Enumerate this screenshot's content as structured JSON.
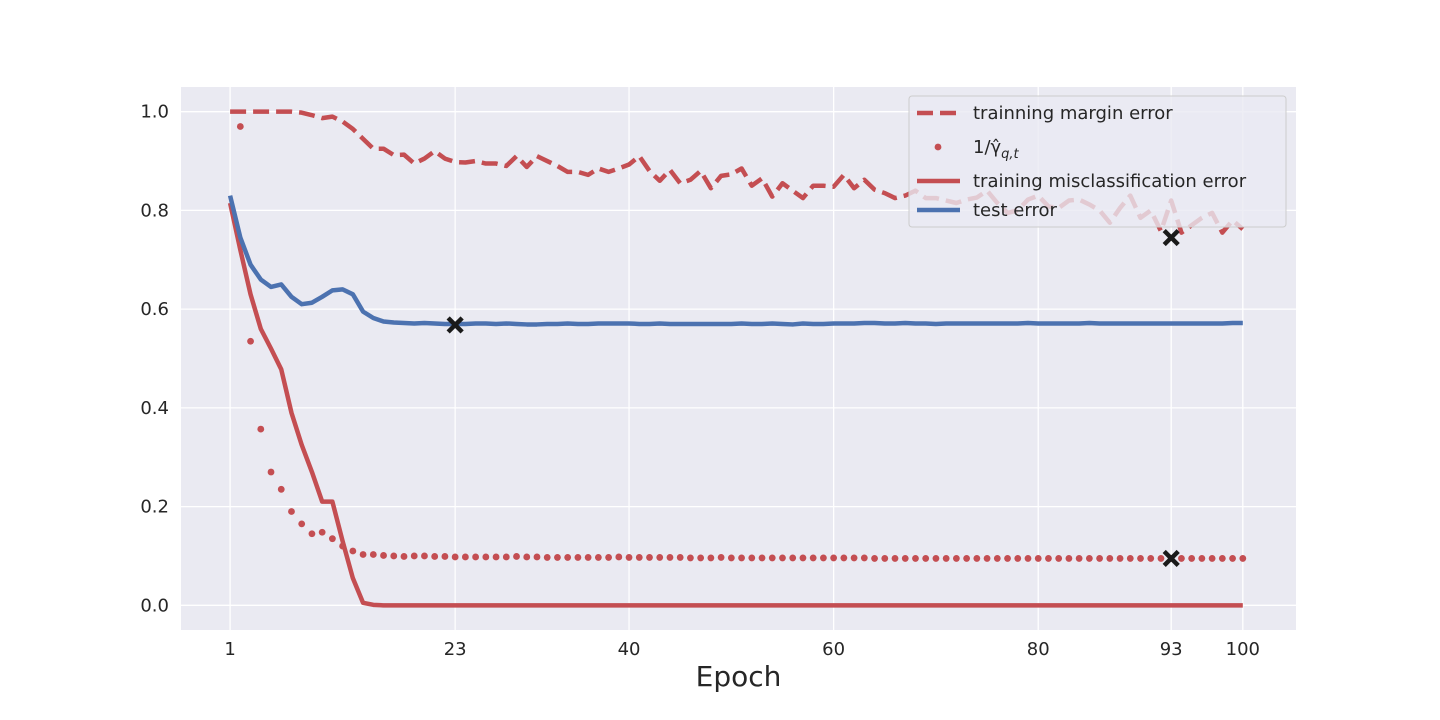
{
  "chart_data": {
    "type": "line",
    "xlabel": "Epoch",
    "ylabel": "",
    "xlim": [
      -3.8,
      105.2
    ],
    "ylim": [
      -0.05,
      1.05
    ],
    "xticks": [
      1,
      23,
      40,
      60,
      80,
      93,
      100
    ],
    "yticks": [
      0.0,
      0.2,
      0.4,
      0.6,
      0.8,
      1.0
    ],
    "grid": true,
    "legend_placement": "top-right",
    "colors": {
      "background": "#eaeaf2",
      "grid": "#ffffff",
      "red": "#c44e52",
      "blue": "#4c72b0",
      "marker": "#1a1a1a"
    },
    "series": [
      {
        "name": "trainning margin error",
        "style": "dashed",
        "color": "#c44e52",
        "values": [
          1.0,
          1.0,
          1.0,
          1.0,
          1.0,
          1.0,
          1.0,
          0.998,
          0.993,
          0.987,
          0.99,
          0.98,
          0.965,
          0.945,
          0.925,
          0.925,
          0.912,
          0.913,
          0.895,
          0.905,
          0.92,
          0.905,
          0.898,
          0.897,
          0.9,
          0.895,
          0.895,
          0.89,
          0.91,
          0.888,
          0.91,
          0.9,
          0.89,
          0.878,
          0.878,
          0.872,
          0.885,
          0.878,
          0.885,
          0.893,
          0.91,
          0.88,
          0.86,
          0.882,
          0.855,
          0.862,
          0.88,
          0.845,
          0.87,
          0.873,
          0.885,
          0.85,
          0.865,
          0.828,
          0.855,
          0.84,
          0.825,
          0.85,
          0.85,
          0.848,
          0.872,
          0.845,
          0.862,
          0.842,
          0.835,
          0.825,
          0.83,
          0.84,
          0.825,
          0.825,
          0.82,
          0.815,
          0.822,
          0.826,
          0.84,
          0.815,
          0.795,
          0.8,
          0.822,
          0.83,
          0.808,
          0.805,
          0.82,
          0.822,
          0.812,
          0.8,
          0.775,
          0.805,
          0.83,
          0.785,
          0.8,
          0.758,
          0.82,
          0.755,
          0.77,
          0.785,
          0.795,
          0.755,
          0.78,
          0.762
        ]
      },
      {
        "name": "1/γ̂q,t",
        "style": "dotted-markers",
        "color": "#c44e52",
        "values": [
          null,
          0.97,
          0.535,
          0.357,
          0.27,
          0.235,
          0.19,
          0.165,
          0.145,
          0.148,
          0.135,
          0.12,
          0.11,
          0.103,
          0.103,
          0.101,
          0.1,
          0.099,
          0.1,
          0.1,
          0.099,
          0.099,
          0.098,
          0.098,
          0.098,
          0.098,
          0.098,
          0.098,
          0.099,
          0.098,
          0.098,
          0.097,
          0.097,
          0.097,
          0.097,
          0.097,
          0.097,
          0.097,
          0.098,
          0.097,
          0.097,
          0.097,
          0.097,
          0.097,
          0.097,
          0.096,
          0.096,
          0.096,
          0.097,
          0.096,
          0.096,
          0.096,
          0.096,
          0.096,
          0.096,
          0.096,
          0.096,
          0.096,
          0.096,
          0.096,
          0.096,
          0.096,
          0.096,
          0.095,
          0.095,
          0.095,
          0.095,
          0.095,
          0.095,
          0.095,
          0.095,
          0.095,
          0.095,
          0.095,
          0.095,
          0.095,
          0.095,
          0.095,
          0.095,
          0.095,
          0.095,
          0.095,
          0.095,
          0.095,
          0.095,
          0.095,
          0.095,
          0.095,
          0.095,
          0.095,
          0.095,
          0.095,
          0.095,
          0.095,
          0.095,
          0.095,
          0.095,
          0.095,
          0.095,
          0.095
        ]
      },
      {
        "name": "training misclassification error",
        "style": "solid",
        "color": "#c44e52",
        "values": [
          0.815,
          0.72,
          0.63,
          0.56,
          0.52,
          0.478,
          0.39,
          0.325,
          0.27,
          0.21,
          0.21,
          0.13,
          0.055,
          0.005,
          0.001,
          0.0,
          0.0,
          0.0,
          0.0,
          0.0,
          0.0,
          0.0,
          0.0,
          0.0,
          0.0,
          0.0,
          0.0,
          0.0,
          0.0,
          0.0,
          0.0,
          0.0,
          0.0,
          0.0,
          0.0,
          0.0,
          0.0,
          0.0,
          0.0,
          0.0,
          0.0,
          0.0,
          0.0,
          0.0,
          0.0,
          0.0,
          0.0,
          0.0,
          0.0,
          0.0,
          0.0,
          0.0,
          0.0,
          0.0,
          0.0,
          0.0,
          0.0,
          0.0,
          0.0,
          0.0,
          0.0,
          0.0,
          0.0,
          0.0,
          0.0,
          0.0,
          0.0,
          0.0,
          0.0,
          0.0,
          0.0,
          0.0,
          0.0,
          0.0,
          0.0,
          0.0,
          0.0,
          0.0,
          0.0,
          0.0,
          0.0,
          0.0,
          0.0,
          0.0,
          0.0,
          0.0,
          0.0,
          0.0,
          0.0,
          0.0,
          0.0,
          0.0,
          0.0,
          0.0,
          0.0,
          0.0,
          0.0,
          0.0,
          0.0,
          0.0
        ]
      },
      {
        "name": "test error",
        "style": "solid",
        "color": "#4c72b0",
        "values": [
          0.83,
          0.745,
          0.69,
          0.66,
          0.645,
          0.65,
          0.625,
          0.61,
          0.613,
          0.625,
          0.638,
          0.64,
          0.63,
          0.595,
          0.582,
          0.575,
          0.573,
          0.572,
          0.571,
          0.572,
          0.571,
          0.57,
          0.57,
          0.57,
          0.571,
          0.571,
          0.57,
          0.571,
          0.57,
          0.569,
          0.569,
          0.57,
          0.57,
          0.571,
          0.57,
          0.57,
          0.571,
          0.571,
          0.571,
          0.571,
          0.57,
          0.57,
          0.571,
          0.57,
          0.57,
          0.57,
          0.57,
          0.57,
          0.57,
          0.57,
          0.571,
          0.57,
          0.57,
          0.571,
          0.57,
          0.569,
          0.571,
          0.57,
          0.57,
          0.571,
          0.571,
          0.571,
          0.572,
          0.572,
          0.571,
          0.571,
          0.572,
          0.571,
          0.571,
          0.57,
          0.571,
          0.571,
          0.571,
          0.571,
          0.571,
          0.571,
          0.571,
          0.571,
          0.572,
          0.571,
          0.571,
          0.571,
          0.571,
          0.571,
          0.572,
          0.571,
          0.571,
          0.571,
          0.571,
          0.571,
          0.571,
          0.571,
          0.571,
          0.571,
          0.571,
          0.571,
          0.571,
          0.571,
          0.572,
          0.572
        ]
      }
    ],
    "annotations": [
      {
        "type": "x-marker",
        "x": 23,
        "y": 0.568
      },
      {
        "type": "x-marker",
        "x": 93,
        "y": 0.745
      },
      {
        "type": "x-marker",
        "x": 93,
        "y": 0.095
      }
    ]
  }
}
